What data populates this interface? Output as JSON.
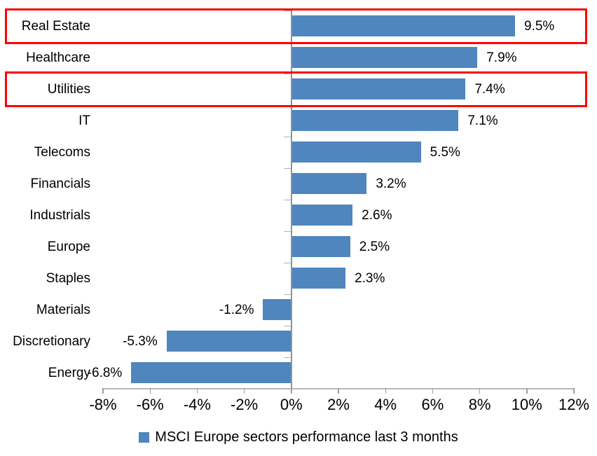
{
  "chart_data": {
    "type": "bar",
    "orientation": "horizontal",
    "title": "",
    "categories": [
      "Real Estate",
      "Healthcare",
      "Utilities",
      "IT",
      "Telecoms",
      "Financials",
      "Industrials",
      "Europe",
      "Staples",
      "Materials",
      "Discretionary",
      "Energy"
    ],
    "values": [
      9.5,
      7.9,
      7.4,
      7.1,
      5.5,
      3.2,
      2.6,
      2.5,
      2.3,
      -1.2,
      -5.3,
      -6.8
    ],
    "data_labels": [
      "9.5%",
      "7.9%",
      "7.4%",
      "7.1%",
      "5.5%",
      "3.2%",
      "2.6%",
      "2.5%",
      "2.3%",
      "-1.2%",
      "-5.3%",
      "-6.8%"
    ],
    "xlim": [
      -8,
      12
    ],
    "x_ticks": [
      -8,
      -6,
      -4,
      -2,
      0,
      2,
      4,
      6,
      8,
      10,
      12
    ],
    "x_tick_labels": [
      "-8%",
      "-6%",
      "-4%",
      "-2%",
      "0%",
      "2%",
      "4%",
      "6%",
      "8%",
      "10%",
      "12%"
    ],
    "grid": false,
    "legend_position": "bottom",
    "bar_color": "#4f86bd",
    "highlight_color": "#ff0000",
    "highlighted_categories": [
      "Real Estate",
      "Utilities"
    ]
  },
  "legend": {
    "label": "MSCI Europe sectors performance last 3 months"
  }
}
